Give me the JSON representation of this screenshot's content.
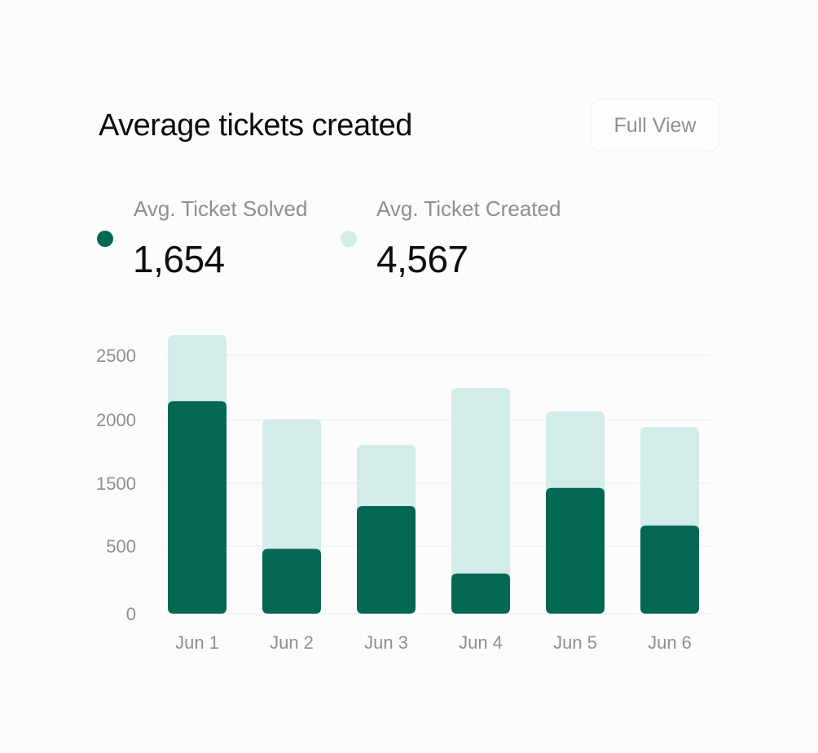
{
  "title": "Average tickets created",
  "full_view_label": "Full View",
  "legend": [
    {
      "label": "Avg. Ticket Solved",
      "value": "1,654",
      "color": "#036753"
    },
    {
      "label": "Avg. Ticket Created",
      "value": "4,567",
      "color": "#d1ece9"
    }
  ],
  "chart_data": {
    "type": "bar",
    "stacked": false,
    "categories": [
      "Jun 1",
      "Jun 2",
      "Jun 3",
      "Jun 4",
      "Jun 5",
      "Jun 6"
    ],
    "y_ticks": [
      "2500",
      "2000",
      "1500",
      "500",
      "0"
    ],
    "series": [
      {
        "name": "Avg. Ticket Created",
        "color": "#d1ece9",
        "values": [
          2150,
          1500,
          1300,
          1740,
          1560,
          1440
        ]
      },
      {
        "name": "Avg. Ticket Solved",
        "color": "#036753",
        "values": [
          1640,
          500,
          830,
          310,
          970,
          680
        ]
      }
    ],
    "grid": true,
    "legend_position": "top-left"
  }
}
